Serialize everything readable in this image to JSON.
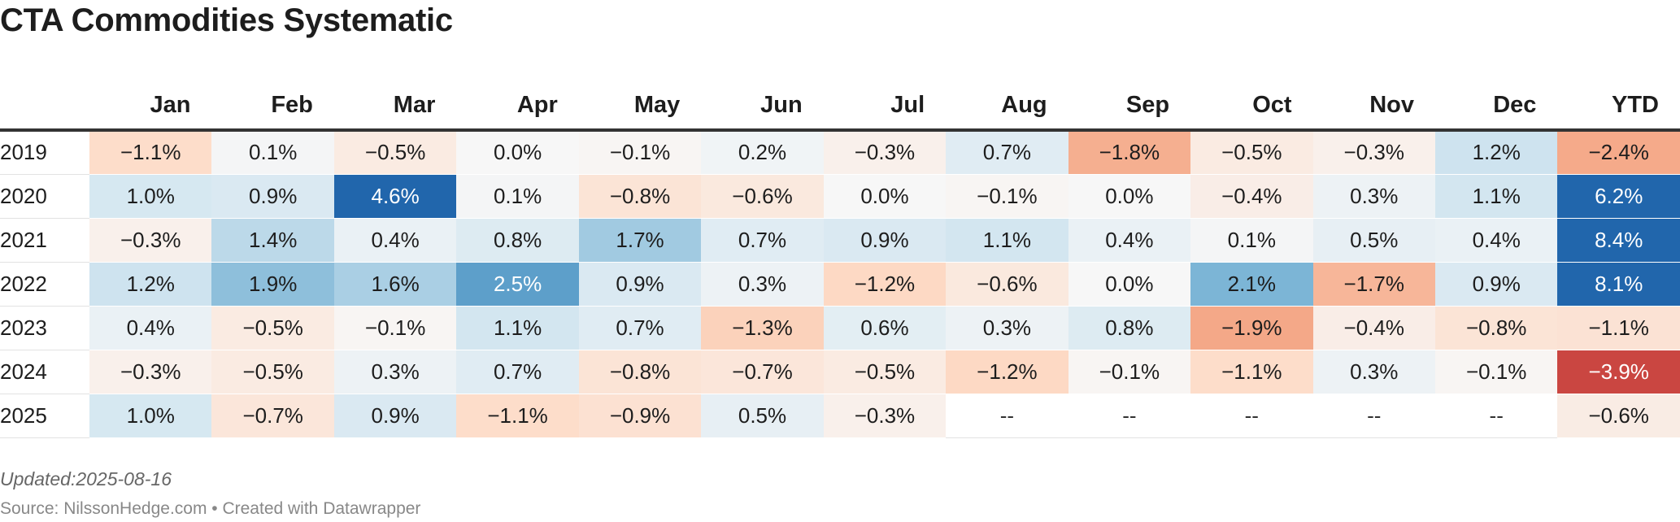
{
  "title": "CTA Commodities Systematic",
  "notes": "Updated:2025-08-16",
  "source": "Source: NilssonHedge.com • Created with Datawrapper",
  "chart_data": {
    "type": "heatmap",
    "title": "CTA Commodities Systematic",
    "columns": [
      "Jan",
      "Feb",
      "Mar",
      "Apr",
      "May",
      "Jun",
      "Jul",
      "Aug",
      "Sep",
      "Oct",
      "Nov",
      "Dec",
      "YTD"
    ],
    "rows": [
      {
        "year": "2019",
        "values": [
          "-1.1%",
          "0.1%",
          "-0.5%",
          "0.0%",
          "-0.1%",
          "0.2%",
          "-0.3%",
          "0.7%",
          "-1.8%",
          "-0.5%",
          "-0.3%",
          "1.2%",
          "-2.4%"
        ]
      },
      {
        "year": "2020",
        "values": [
          "1.0%",
          "0.9%",
          "4.6%",
          "0.1%",
          "-0.8%",
          "-0.6%",
          "0.0%",
          "-0.1%",
          "0.0%",
          "-0.4%",
          "0.3%",
          "1.1%",
          "6.2%"
        ]
      },
      {
        "year": "2021",
        "values": [
          "-0.3%",
          "1.4%",
          "0.4%",
          "0.8%",
          "1.7%",
          "0.7%",
          "0.9%",
          "1.1%",
          "0.4%",
          "0.1%",
          "0.5%",
          "0.4%",
          "8.4%"
        ]
      },
      {
        "year": "2022",
        "values": [
          "1.2%",
          "1.9%",
          "1.6%",
          "2.5%",
          "0.9%",
          "0.3%",
          "-1.2%",
          "-0.6%",
          "0.0%",
          "2.1%",
          "-1.7%",
          "0.9%",
          "8.1%"
        ]
      },
      {
        "year": "2023",
        "values": [
          "0.4%",
          "-0.5%",
          "-0.1%",
          "1.1%",
          "0.7%",
          "-1.3%",
          "0.6%",
          "0.3%",
          "0.8%",
          "-1.9%",
          "-0.4%",
          "-0.8%",
          "-1.1%"
        ]
      },
      {
        "year": "2024",
        "values": [
          "-0.3%",
          "-0.5%",
          "0.3%",
          "0.7%",
          "-0.8%",
          "-0.7%",
          "-0.5%",
          "-1.2%",
          "-0.1%",
          "-1.1%",
          "0.3%",
          "-0.1%",
          "-3.9%"
        ]
      },
      {
        "year": "2025",
        "values": [
          "1.0%",
          "-0.7%",
          "0.9%",
          "-1.1%",
          "-0.9%",
          "0.5%",
          "-0.3%",
          "--",
          "--",
          "--",
          "--",
          "--",
          "-0.6%"
        ]
      }
    ],
    "color_scale": {
      "negative_strong": "#b2182b",
      "negative": "#ef8a62",
      "negative_light": "#fddbc7",
      "neutral": "#f7f7f7",
      "positive_light": "#d1e5f0",
      "positive": "#67a9cf",
      "positive_strong": "#2166ac",
      "missing": "#ffffff"
    }
  }
}
